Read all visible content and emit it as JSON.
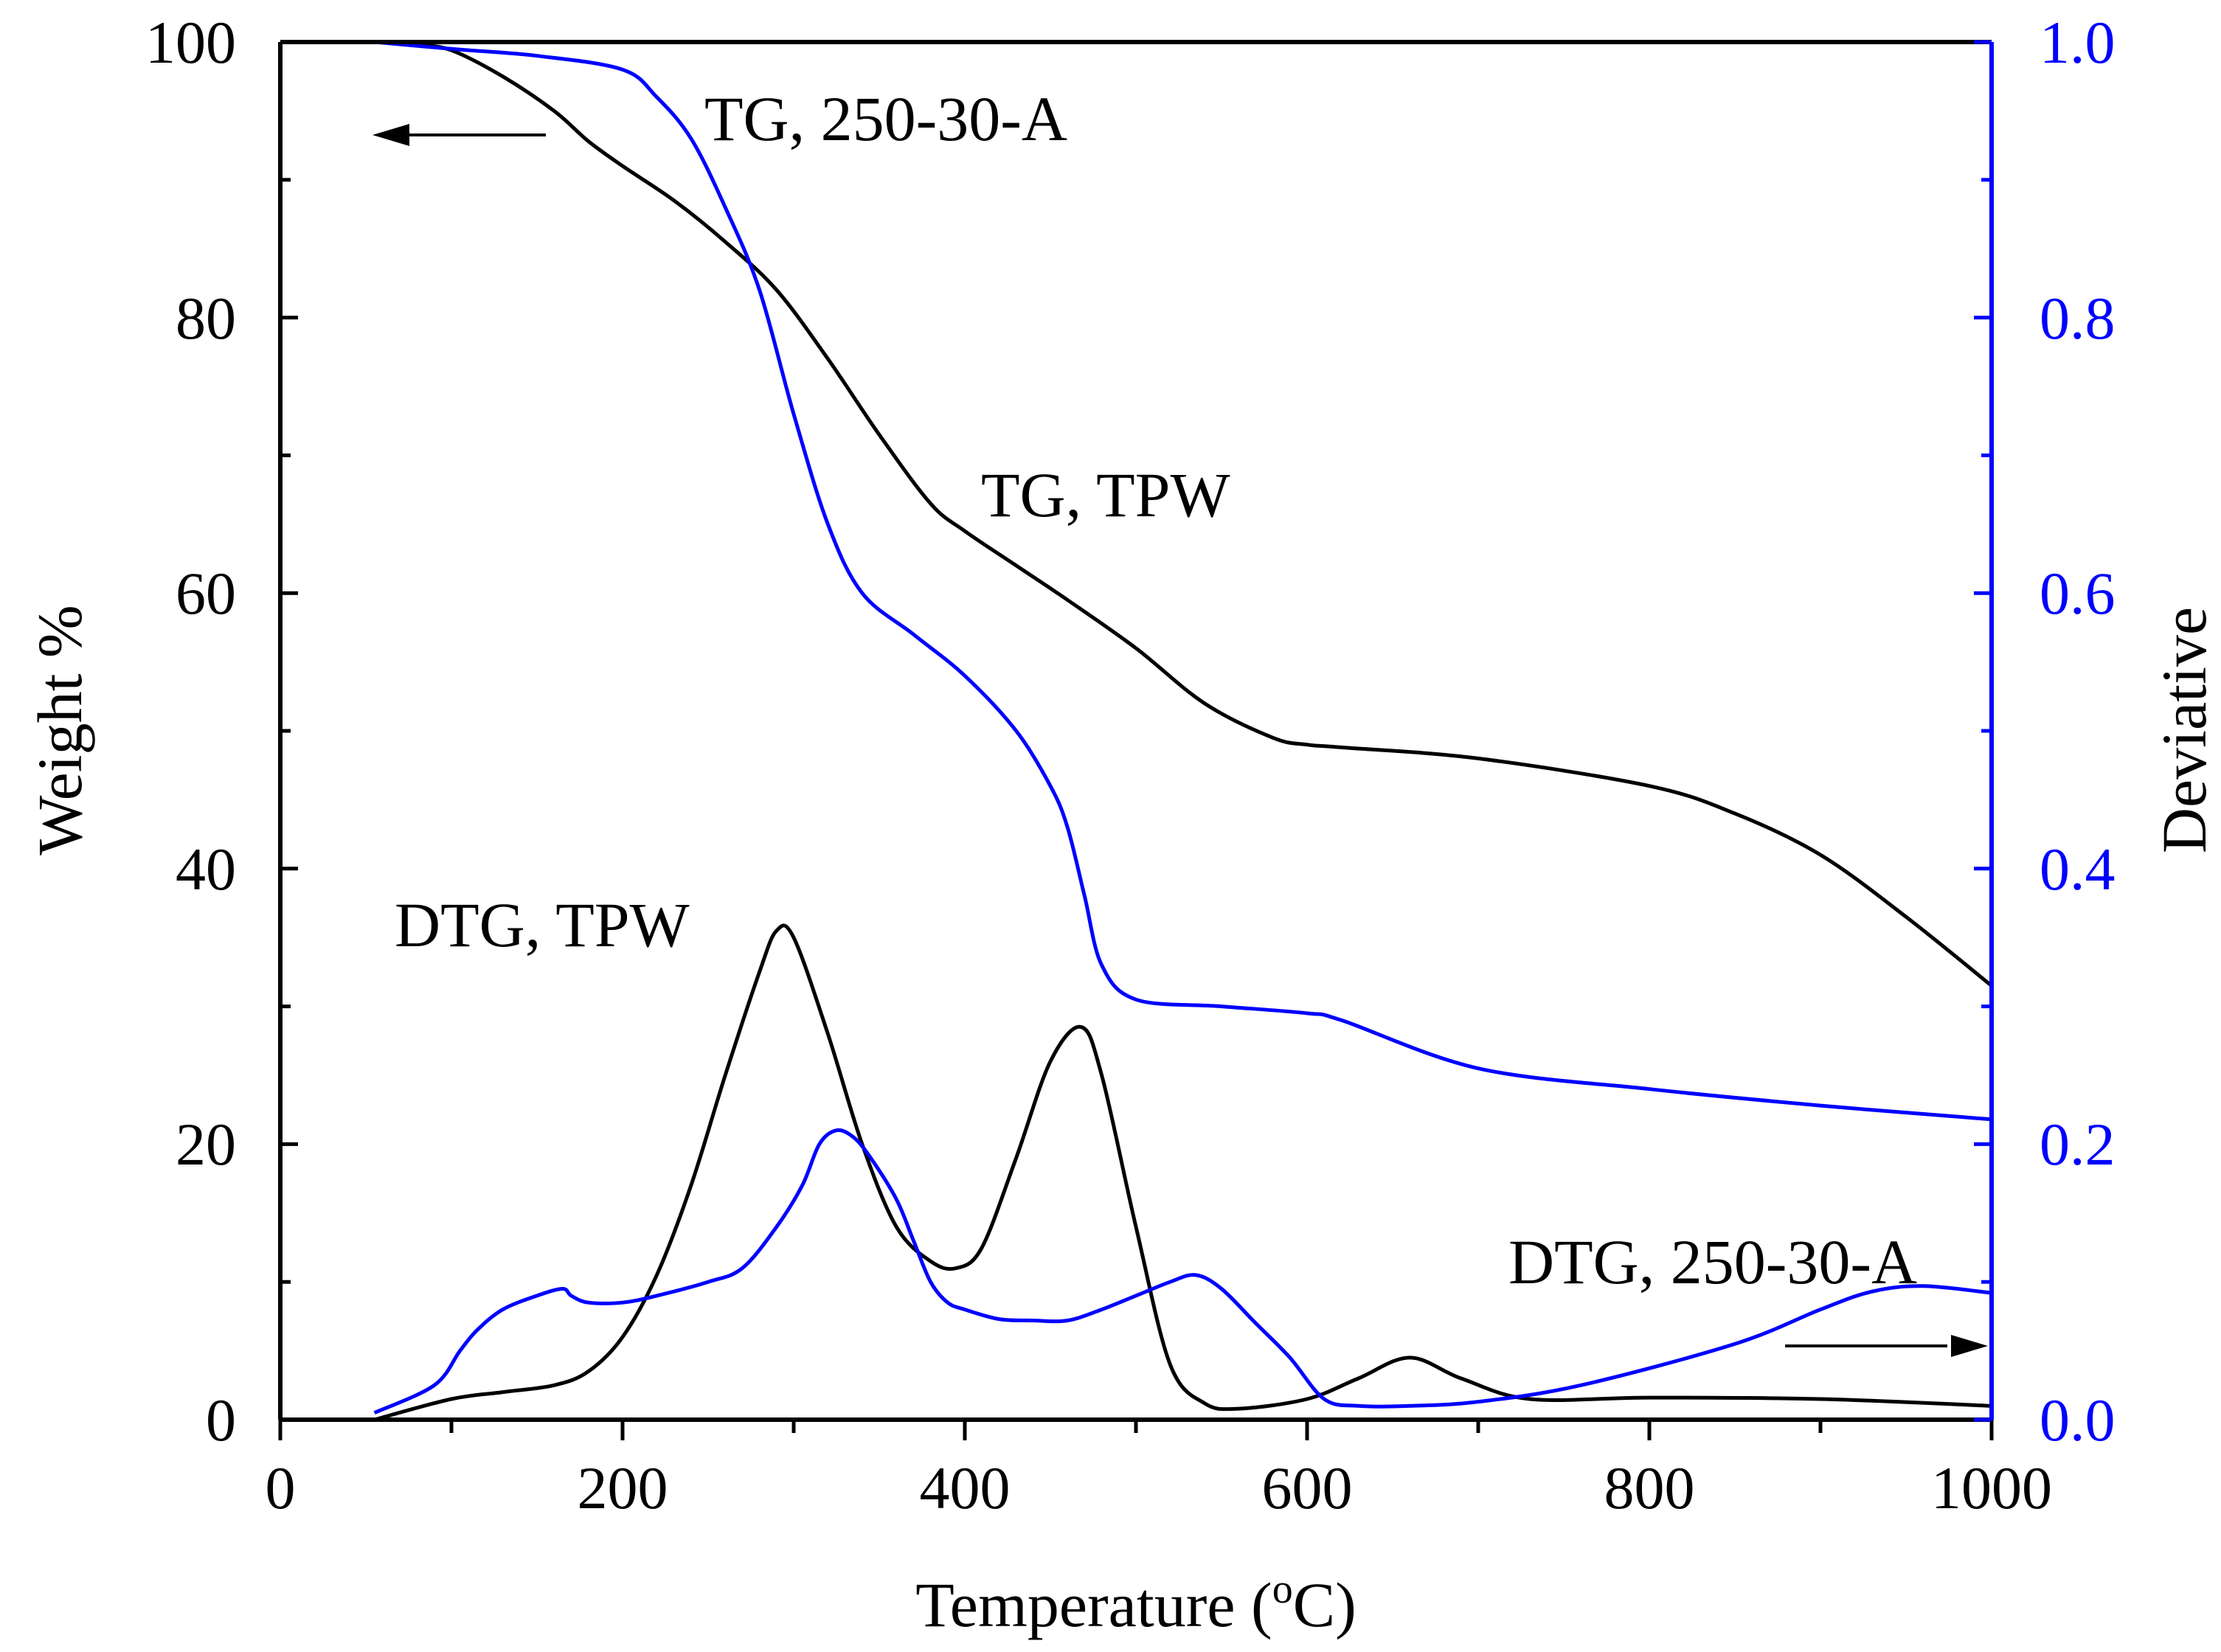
{
  "colors": {
    "black": "#000000",
    "blue": "#0000ff"
  },
  "chart_data": {
    "type": "line",
    "xlabel": "Temperature (",
    "xlabel_sup": "o",
    "xlabel_tail": "C)",
    "ylabel_left": "Weight %",
    "ylabel_right": "Deviative",
    "xlim": [
      0,
      1000
    ],
    "ylim_left": [
      0,
      100
    ],
    "ylim_right": [
      0,
      1.0
    ],
    "x_ticks": [
      "0",
      "200",
      "400",
      "600",
      "800",
      "1000"
    ],
    "y_left_ticks": [
      "0",
      "20",
      "40",
      "60",
      "80",
      "100"
    ],
    "y_right_ticks": [
      "0.0",
      "0.2",
      "0.4",
      "0.6",
      "0.8",
      "1.0"
    ],
    "grid": false,
    "annotations": {
      "tg_250": "TG, 250-30-A",
      "tg_tpw": "TG, TPW",
      "dtg_tpw": "DTG, TPW",
      "dtg_250": "DTG, 250-30-A"
    },
    "series": [
      {
        "id": "tg_tpw",
        "axis": "left",
        "color": "#000000",
        "x": [
          55,
          80,
          100,
          130,
          160,
          180,
          200,
          230,
          260,
          290,
          320,
          350,
          380,
          400,
          430,
          460,
          500,
          540,
          580,
          600,
          620,
          700,
          800,
          850,
          900,
          950,
          1000
        ],
        "y": [
          100,
          99.8,
          99.4,
          97.5,
          95,
          92.8,
          91,
          88.5,
          85.5,
          82,
          77,
          71.5,
          66.5,
          64.5,
          62,
          59.5,
          56,
          52,
          49.5,
          49,
          48.8,
          48,
          46,
          44,
          41,
          36.5,
          31.5
        ]
      },
      {
        "id": "tg_250",
        "axis": "right",
        "color": "#0000ff",
        "x": [
          55,
          100,
          150,
          200,
          220,
          240,
          260,
          280,
          300,
          320,
          340,
          370,
          400,
          430,
          450,
          460,
          470,
          480,
          500,
          550,
          600,
          620,
          700,
          800,
          900,
          1000
        ],
        "y": [
          1.0,
          0.995,
          0.99,
          0.98,
          0.96,
          0.93,
          0.88,
          0.82,
          0.73,
          0.65,
          0.6,
          0.57,
          0.54,
          0.5,
          0.46,
          0.43,
          0.38,
          0.33,
          0.305,
          0.3,
          0.295,
          0.29,
          0.255,
          0.24,
          0.228,
          0.218
        ]
      },
      {
        "id": "dtg_tpw",
        "axis": "left",
        "color": "#000000",
        "x": [
          55,
          100,
          130,
          160,
          180,
          200,
          220,
          240,
          260,
          280,
          290,
          300,
          320,
          340,
          360,
          380,
          395,
          410,
          430,
          450,
          468,
          480,
          500,
          520,
          540,
          560,
          600,
          630,
          660,
          690,
          730,
          800,
          900,
          1000
        ],
        "y": [
          0,
          1.5,
          2,
          2.5,
          3.5,
          6,
          10.5,
          17,
          25,
          32.5,
          35.5,
          35,
          28,
          20,
          14,
          11.5,
          11,
          12.5,
          19,
          26,
          28.5,
          25,
          14,
          4,
          1.2,
          0.8,
          1.5,
          3,
          4.5,
          3,
          1.5,
          1.6,
          1.5,
          1
        ]
      },
      {
        "id": "dtg_250",
        "axis": "right",
        "color": "#0000ff",
        "x": [
          55,
          90,
          105,
          115,
          130,
          150,
          165,
          170,
          180,
          200,
          220,
          250,
          270,
          290,
          305,
          315,
          325,
          335,
          345,
          360,
          370,
          380,
          390,
          400,
          420,
          440,
          460,
          480,
          500,
          520,
          535,
          550,
          570,
          590,
          610,
          630,
          660,
          700,
          760,
          850,
          900,
          930,
          960,
          1000
        ],
        "y": [
          0.005,
          0.025,
          0.05,
          0.065,
          0.08,
          0.09,
          0.095,
          0.09,
          0.085,
          0.085,
          0.09,
          0.1,
          0.11,
          0.14,
          0.17,
          0.2,
          0.21,
          0.205,
          0.19,
          0.16,
          0.13,
          0.1,
          0.085,
          0.08,
          0.073,
          0.072,
          0.072,
          0.08,
          0.09,
          0.1,
          0.105,
          0.095,
          0.07,
          0.045,
          0.015,
          0.01,
          0.01,
          0.013,
          0.025,
          0.055,
          0.08,
          0.093,
          0.097,
          0.092
        ]
      }
    ]
  }
}
